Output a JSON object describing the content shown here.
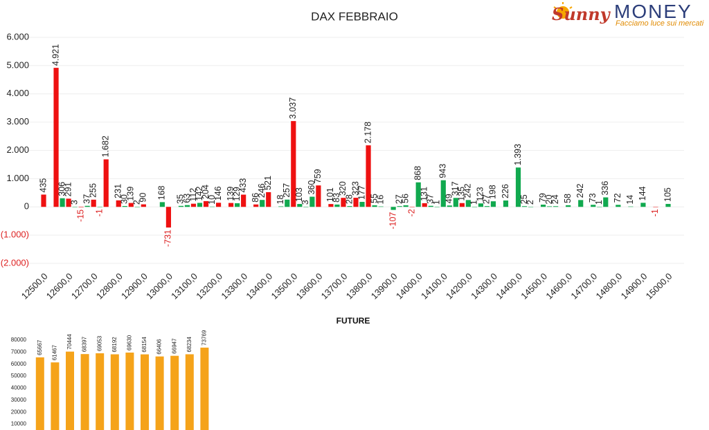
{
  "logo": {
    "brand": "Sunny",
    "name": "MONEY",
    "tagline": "Facciamo luce sui mercati"
  },
  "chart_data": [
    {
      "type": "bar",
      "title": "DAX FEBBRAIO",
      "xlim": [
        12475,
        15025
      ],
      "xticks": [
        {
          "value": 12500,
          "label": "12500,0"
        },
        {
          "value": 12600,
          "label": "12600,0"
        },
        {
          "value": 12700,
          "label": "12700,0"
        },
        {
          "value": 12800,
          "label": "12800,0"
        },
        {
          "value": 12900,
          "label": "12900,0"
        },
        {
          "value": 13000,
          "label": "13000,0"
        },
        {
          "value": 13100,
          "label": "13100,0"
        },
        {
          "value": 13200,
          "label": "13200,0"
        },
        {
          "value": 13300,
          "label": "13300,0"
        },
        {
          "value": 13400,
          "label": "13400,0"
        },
        {
          "value": 13500,
          "label": "13500,0"
        },
        {
          "value": 13600,
          "label": "13600,0"
        },
        {
          "value": 13700,
          "label": "13700,0"
        },
        {
          "value": 13800,
          "label": "13800,0"
        },
        {
          "value": 13900,
          "label": "13900,0"
        },
        {
          "value": 14000,
          "label": "14000,0"
        },
        {
          "value": 14100,
          "label": "14100,0"
        },
        {
          "value": 14200,
          "label": "14200,0"
        },
        {
          "value": 14300,
          "label": "14300,0"
        },
        {
          "value": 14400,
          "label": "14400,0"
        },
        {
          "value": 14500,
          "label": "14500,0"
        },
        {
          "value": 14600,
          "label": "14600,0"
        },
        {
          "value": 14700,
          "label": "14700,0"
        },
        {
          "value": 14800,
          "label": "14800,0"
        },
        {
          "value": 14900,
          "label": "14900,0"
        },
        {
          "value": 15000,
          "label": "15000,0"
        }
      ],
      "ylim": [
        -2000,
        6000
      ],
      "yticks": [
        {
          "value": 6000,
          "label": "6.000"
        },
        {
          "value": 5000,
          "label": "5.000"
        },
        {
          "value": 4000,
          "label": "4.000"
        },
        {
          "value": 3000,
          "label": "3.000"
        },
        {
          "value": 2000,
          "label": "2.000"
        },
        {
          "value": 1000,
          "label": "1.000"
        },
        0,
        {
          "value": -1000,
          "label": "(1.000)"
        },
        {
          "value": -2000,
          "label": "(2.000)"
        }
      ],
      "grid": true,
      "series": [
        {
          "color": "#ee1111",
          "x": [
            12500,
            12550,
            12600,
            12650,
            12700,
            12750,
            12800,
            12850,
            12900,
            13000,
            13100,
            13150,
            13200,
            13250,
            13300,
            13350,
            13400,
            13500,
            13600,
            13650,
            13700,
            13750,
            13800,
            13975,
            14025,
            14175,
            14950
          ],
          "values": [
            435,
            4921,
            291,
            -15,
            255,
            1682,
            231,
            139,
            90,
            -731,
            112,
            204,
            146,
            139,
            433,
            86,
            521,
            3037,
            759,
            101,
            320,
            323,
            2178,
            -2,
            131,
            135,
            -1
          ],
          "value_labels": [
            "435",
            "4.921",
            "291",
            "-15",
            "255",
            "1.682",
            "231",
            "139",
            "90",
            "-731",
            "112",
            "204",
            "146",
            "139",
            "433",
            "86",
            "521",
            "3.037",
            "759",
            "101",
            "320",
            "323",
            "2.178",
            "-2",
            "131",
            "135",
            "-1"
          ]
        },
        {
          "color": "#11a94f",
          "x": [
            12575,
            12625,
            12675,
            12725,
            12825,
            12875,
            12975,
            13050,
            13075,
            13125,
            13175,
            13275,
            13375,
            13450,
            13475,
            13525,
            13550,
            13575,
            13675,
            13725,
            13775,
            13825,
            13850,
            13900,
            13925,
            13950,
            14000,
            14050,
            14075,
            14100,
            14125,
            14150,
            14200,
            14225,
            14250,
            14275,
            14300,
            14350,
            14400,
            14425,
            14450,
            14500,
            14525,
            14550,
            14600,
            14650,
            14700,
            14725,
            14750,
            14800,
            14850,
            14900,
            15000
          ],
          "values": [
            306,
            3,
            37,
            -1,
            30,
            2,
            168,
            35,
            63,
            142,
            10,
            129,
            246,
            18,
            257,
            103,
            3,
            360,
            83,
            28,
            177,
            55,
            16,
            -107,
            27,
            56,
            868,
            37,
            1,
            943,
            49,
            317,
            242,
            1,
            123,
            27,
            198,
            226,
            1393,
            25,
            2,
            79,
            20,
            24,
            58,
            242,
            73,
            1,
            336,
            72,
            14,
            144,
            105
          ],
          "value_labels": [
            "306",
            "3",
            "37",
            "-1",
            "30",
            "2",
            "168",
            "35",
            "63",
            "142",
            "10",
            "129",
            "246",
            "18",
            "257",
            "103",
            "3",
            "360",
            "83",
            "28",
            "177",
            "55",
            "16",
            "-107",
            "27",
            "56",
            "868",
            "37",
            "1",
            "943",
            "49",
            "317",
            "242",
            "1",
            "123",
            "27",
            "198",
            "226",
            "1.393",
            "25",
            "2",
            "79",
            "20",
            "24",
            "58",
            "242",
            "73",
            "1",
            "336",
            "72",
            "14",
            "144",
            "105"
          ]
        }
      ]
    },
    {
      "type": "bar",
      "title": "FUTURE",
      "color": "#f5a31a",
      "values": [
        65667,
        61467,
        70444,
        68397,
        69053,
        68192,
        69630,
        68154,
        66406,
        66947,
        68234,
        73769
      ],
      "ylim": [
        0,
        80000
      ],
      "yticks": [
        10000,
        20000,
        30000,
        40000,
        50000,
        60000,
        70000,
        80000
      ]
    }
  ]
}
